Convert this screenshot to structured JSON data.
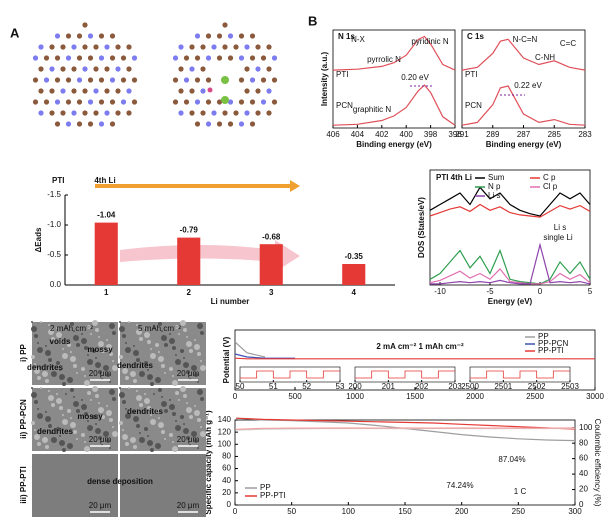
{
  "panels": [
    "A",
    "B"
  ],
  "sem": {
    "columns": [
      "2 mAh cm⁻²",
      "5 mAh cm⁻²"
    ],
    "rows": [
      "i) PP",
      "ii) PP-PCN",
      "iii) PP-PTI"
    ],
    "labels": [
      "voids",
      "mossy",
      "dendrites",
      "dendrites",
      "dendrites",
      "mossy",
      "dendrites",
      "dense deposition"
    ],
    "scale": "20 μm"
  },
  "chart_data": [
    {
      "type": "line",
      "title": "N 1s",
      "xlabel": "Binding energy (eV)",
      "ylabel": "Intensity (a.u.)",
      "x": [
        406,
        404,
        402,
        401,
        400,
        399,
        398.5,
        398,
        397,
        396
      ],
      "xlim": [
        406,
        396
      ],
      "xticks": [
        406,
        404,
        402,
        400,
        398,
        396
      ],
      "ylim": [
        0,
        10.5
      ],
      "annotations": [
        "N-X",
        "pyrrolic N",
        "pyridinic N",
        "graphitic N",
        "0.20 eV"
      ],
      "series": [
        {
          "name": "PTI",
          "color": "#e0505a",
          "values": [
            6.2,
            6.3,
            6.6,
            7.0,
            7.8,
            9.5,
            9.8,
            9.0,
            6.8,
            6.2
          ]
        },
        {
          "name": "PCN",
          "color": "#e0505a",
          "values": [
            0.3,
            0.4,
            0.8,
            1.3,
            2.2,
            4.0,
            4.6,
            3.8,
            1.2,
            0.3
          ]
        }
      ]
    },
    {
      "type": "line",
      "title": "C 1s",
      "xlabel": "Binding energy (eV)",
      "x": [
        291,
        290,
        289,
        288.5,
        288,
        287,
        286,
        285,
        284,
        283
      ],
      "xlim": [
        291,
        283
      ],
      "xticks": [
        291,
        289,
        287,
        285,
        283
      ],
      "ylim": [
        0,
        10.5
      ],
      "annotations": [
        "N-C=N",
        "C-NH",
        "C=C",
        "0.22 eV"
      ],
      "series": [
        {
          "name": "PTI",
          "color": "#e0505a",
          "values": [
            6.2,
            6.5,
            8.0,
            9.3,
            9.5,
            7.5,
            6.8,
            7.2,
            6.5,
            6.2
          ]
        },
        {
          "name": "PCN",
          "color": "#e0505a",
          "values": [
            0.3,
            0.6,
            2.5,
            4.3,
            4.5,
            1.5,
            0.6,
            0.9,
            0.4,
            0.3
          ]
        }
      ]
    },
    {
      "type": "bar",
      "title": "PTI",
      "xlabel": "Li number",
      "ylabel": "ΔEads",
      "annotations": [
        "4th Li"
      ],
      "categories": [
        "1",
        "2",
        "3",
        "4"
      ],
      "values": [
        -1.04,
        -0.79,
        -0.68,
        -0.35
      ],
      "color": "#e53935",
      "ylim": [
        0,
        -1.5
      ],
      "yticks": [
        {
          "value": 0,
          "label": "0.0"
        },
        {
          "value": -0.5,
          "label": "-0.5"
        },
        {
          "value": -1,
          "label": "-1.0"
        },
        {
          "value": -1.5,
          "label": "-1.5"
        }
      ]
    },
    {
      "type": "line",
      "title": "PTI 4th Li",
      "xlabel": "Energy (eV)",
      "ylabel": "DOS (States/eV)",
      "annotations": [
        "Li s",
        "single Li"
      ],
      "x": [
        -11,
        -10,
        -9,
        -8,
        -7,
        -6,
        -5,
        -4,
        -3,
        -2,
        -1,
        0,
        1,
        2,
        3,
        4,
        5
      ],
      "xlim": [
        -11,
        5
      ],
      "xticks": [
        -10,
        -5,
        0,
        5
      ],
      "ylim": [
        0,
        10
      ],
      "series": [
        {
          "name": "Sum",
          "color": "#000000",
          "values": [
            6.5,
            7,
            7.5,
            8,
            7,
            8.5,
            7.5,
            8,
            7,
            6.5,
            6.2,
            6,
            7,
            8,
            7.5,
            8,
            7
          ]
        },
        {
          "name": "C p",
          "color": "#e53935",
          "values": [
            6,
            6.3,
            6.6,
            6.8,
            6.4,
            7,
            6.5,
            6.8,
            6.3,
            6.1,
            6,
            5.9,
            6.4,
            6.9,
            6.6,
            6.9,
            6.4
          ]
        },
        {
          "name": "N p",
          "color": "#2e9e4f",
          "values": [
            0.5,
            1,
            2,
            3,
            1.5,
            2.5,
            1,
            3,
            0.5,
            0.3,
            0.2,
            0.1,
            0.5,
            2,
            1,
            2,
            0.5
          ]
        },
        {
          "name": "Cl p",
          "color": "#e06fb0",
          "values": [
            0.2,
            0.4,
            0.8,
            1.2,
            0.6,
            1,
            0.5,
            1.4,
            0.3,
            0.2,
            0.1,
            0.1,
            0.3,
            1,
            0.5,
            0.9,
            0.2
          ]
        },
        {
          "name": "Li s",
          "color": "#8e44ad",
          "values": [
            0.1,
            0.1,
            0.2,
            0.3,
            0.2,
            0.3,
            0.2,
            0.4,
            0.2,
            0.1,
            0.1,
            3.5,
            0.2,
            0.3,
            0.2,
            0.3,
            0.1
          ]
        }
      ]
    },
    {
      "type": "line",
      "ylabel": "Potential (V)",
      "annotations": [
        "2 mA cm⁻² 1 mAh cm⁻²"
      ],
      "x": [
        0,
        100,
        250,
        500,
        750,
        1000,
        1250,
        1500,
        1750,
        2000,
        2250,
        2500,
        2750,
        3000
      ],
      "xlim": [
        0,
        3000
      ],
      "xticks": [
        0,
        500,
        1000,
        1500,
        2000,
        2500,
        3000
      ],
      "ylim": [
        -0.5,
        0.5
      ],
      "insets": [
        {
          "xlim": [
            50,
            53
          ],
          "xticks": [
            50,
            51,
            52,
            53
          ]
        },
        {
          "xlim": [
            200,
            203
          ],
          "xticks": [
            200,
            201,
            202,
            203
          ]
        },
        {
          "xlim": [
            2500,
            2503
          ],
          "xticks": [
            2500,
            2501,
            2502,
            2503
          ]
        }
      ],
      "series": [
        {
          "name": "PP",
          "color": "#9e9e9e",
          "values": [
            0.3,
            0.12,
            0.05,
            null,
            null,
            null,
            null,
            null,
            null,
            null,
            null,
            null,
            null,
            null
          ]
        },
        {
          "name": "PP-PCN",
          "color": "#3f51b5",
          "values": [
            0.1,
            0.05,
            0.03,
            0.03,
            null,
            null,
            null,
            null,
            null,
            null,
            null,
            null,
            null,
            null
          ]
        },
        {
          "name": "PP-PTI",
          "color": "#e53935",
          "values": [
            0.03,
            0.02,
            0.02,
            0.02,
            0.02,
            0.02,
            0.02,
            0.02,
            0.02,
            0.02,
            0.02,
            0.02,
            0.02,
            0.02
          ]
        }
      ]
    },
    {
      "type": "line",
      "ylabel": "Specific capacity (mAh g⁻¹)",
      "y2label": "Coulombic efficiency (%)",
      "annotations": [
        "74.24%",
        "87.04%",
        "1 C"
      ],
      "x": [
        1,
        25,
        50,
        75,
        100,
        125,
        150,
        175,
        200,
        225,
        250,
        275,
        300
      ],
      "xlim": [
        0,
        300
      ],
      "xticks": [
        0,
        50,
        100,
        150,
        200,
        250,
        300
      ],
      "ylim": [
        0,
        140
      ],
      "yticks": [
        0,
        20,
        40,
        60,
        80,
        100,
        120,
        140
      ],
      "y2lim": [
        0,
        110
      ],
      "y2ticks": [
        0,
        20,
        40,
        60,
        80,
        100
      ],
      "series": [
        {
          "name": "PP",
          "color": "#9e9e9e",
          "values": [
            143,
            140,
            139,
            137,
            135,
            131,
            126,
            121,
            116,
            112,
            109,
            107,
            106
          ]
        },
        {
          "name": "PP-PTI",
          "color": "#e53935",
          "values": [
            143,
            141,
            140,
            139,
            138,
            137,
            136,
            135,
            133,
            131,
            129,
            127,
            125
          ]
        },
        {
          "name": "PP",
          "color": "#cfcfcf",
          "axis": "y2",
          "values": [
            97,
            98,
            98.5,
            99,
            99,
            99,
            98.8,
            99,
            99,
            98.8,
            99,
            99,
            99
          ]
        },
        {
          "name": "PP-PTI",
          "color": "#f4a0a0",
          "axis": "y2",
          "values": [
            98,
            99.3,
            99.5,
            99.5,
            99.6,
            99.5,
            99.6,
            99.5,
            99.6,
            99.5,
            99.6,
            99.5,
            99.6
          ]
        }
      ]
    }
  ]
}
